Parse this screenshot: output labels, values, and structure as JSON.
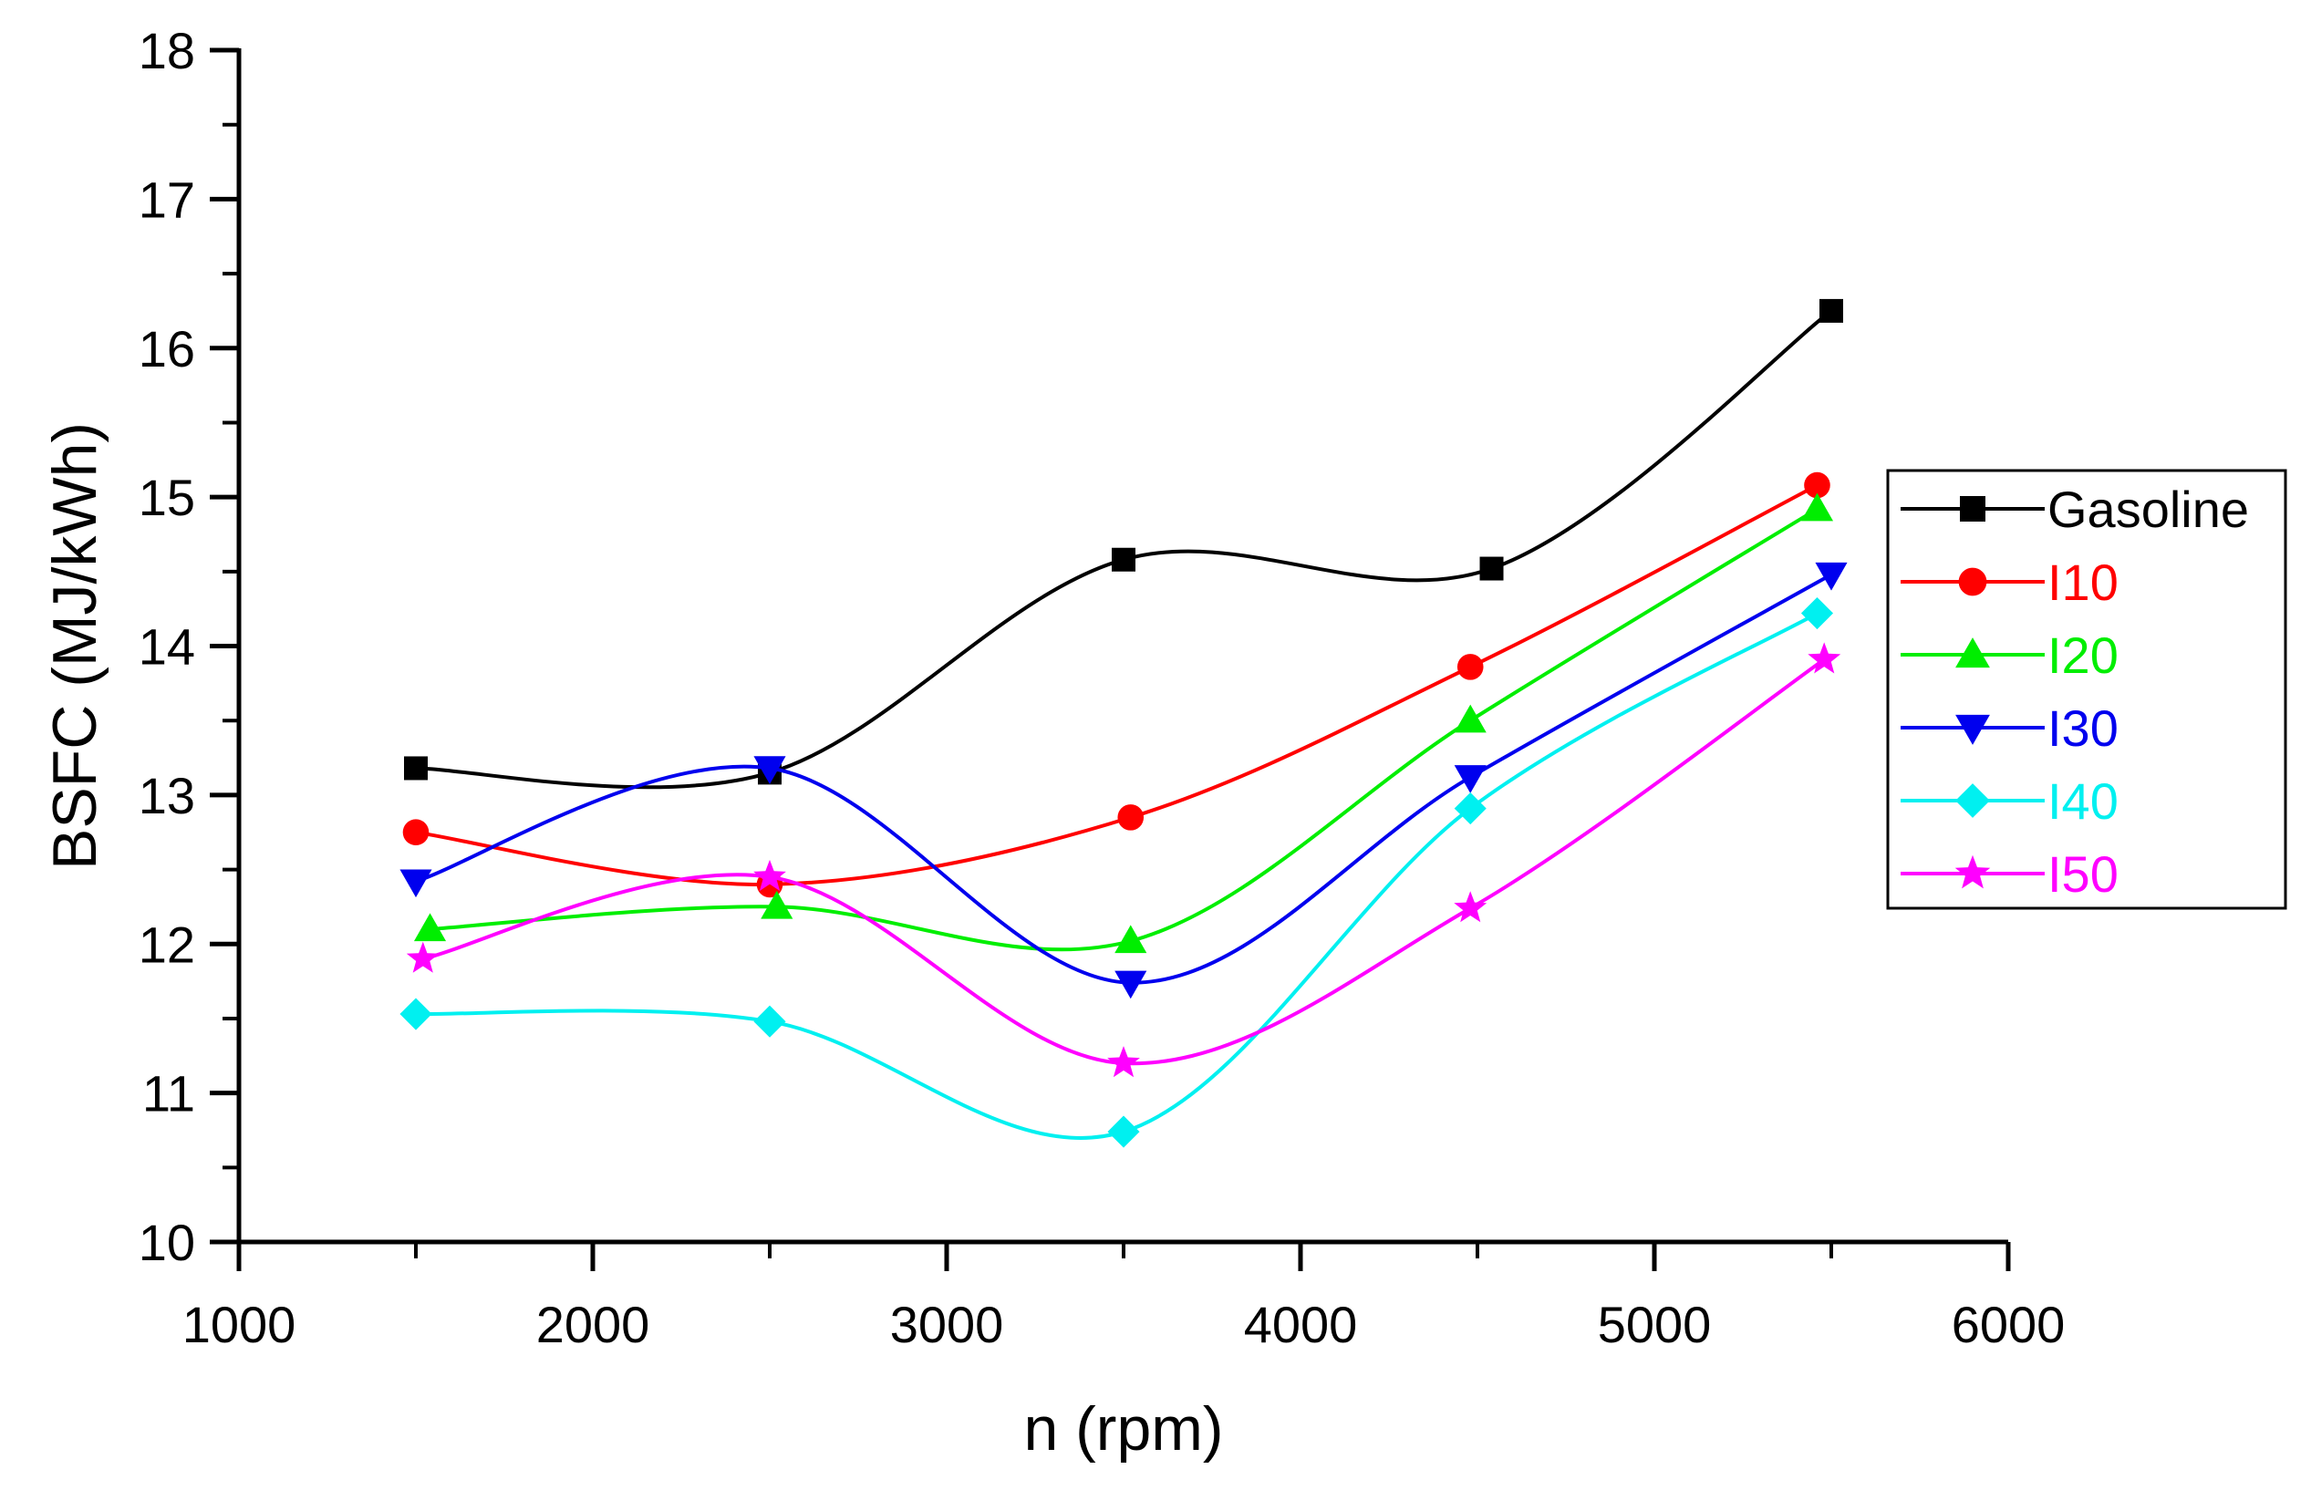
{
  "chart_data": {
    "type": "line",
    "title": "",
    "xlabel": "n (rpm)",
    "ylabel": "BSFC (MJ/kWh)",
    "xlim": [
      1000,
      6000
    ],
    "ylim": [
      10,
      18
    ],
    "xticks": [
      "1000",
      "2000",
      "3000",
      "4000",
      "5000",
      "6000"
    ],
    "yticks": [
      "10",
      "11",
      "12",
      "13",
      "14",
      "15",
      "16",
      "17",
      "18"
    ],
    "legend_position": "right",
    "grid": false,
    "series": [
      {
        "name": "Gasoline",
        "color": "#000000",
        "marker": "square",
        "x": [
          1500,
          2500,
          3500,
          4540,
          5500
        ],
        "y": [
          13.18,
          13.15,
          14.58,
          14.52,
          16.25
        ]
      },
      {
        "name": "I10",
        "color": "#ff0000",
        "marker": "circle",
        "x": [
          1500,
          2500,
          3520,
          4480,
          5460
        ],
        "y": [
          12.75,
          12.4,
          12.85,
          13.86,
          15.08
        ]
      },
      {
        "name": "I20",
        "color": "#00ee00",
        "marker": "triangle-up",
        "x": [
          1540,
          2520,
          3520,
          4480,
          5460
        ],
        "y": [
          12.1,
          12.25,
          12.02,
          13.5,
          14.92
        ]
      },
      {
        "name": "I30",
        "color": "#0000ee",
        "marker": "triangle-down",
        "x": [
          1500,
          2500,
          3520,
          4480,
          5500
        ],
        "y": [
          12.42,
          13.18,
          11.74,
          13.12,
          14.48
        ]
      },
      {
        "name": "I40",
        "color": "#00f0f0",
        "marker": "diamond",
        "x": [
          1500,
          2500,
          3500,
          4480,
          5460
        ],
        "y": [
          11.53,
          11.48,
          10.74,
          12.91,
          14.22
        ]
      },
      {
        "name": "I50",
        "color": "#ff00ff",
        "marker": "star",
        "x": [
          1520,
          2500,
          3500,
          4480,
          5480
        ],
        "y": [
          11.9,
          12.45,
          11.2,
          12.24,
          13.91
        ]
      }
    ]
  }
}
